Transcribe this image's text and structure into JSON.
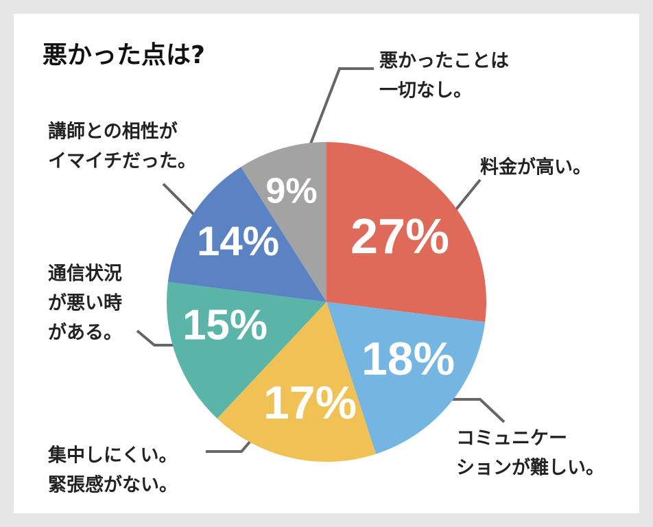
{
  "chart_data": {
    "type": "pie",
    "title": "悪かった点は?",
    "categories": [
      [
        "料金が高い。"
      ],
      [
        "コミュニケー",
        "ションが難しい。"
      ],
      [
        "集中しにくい。",
        "緊張感がない。"
      ],
      [
        "通信状況",
        "が悪い時",
        "がある。"
      ],
      [
        "講師との相性が",
        "イマイチだった。"
      ],
      [
        "悪かったことは",
        "一切なし。"
      ]
    ],
    "values": [
      27,
      18,
      17,
      15,
      14,
      9
    ],
    "value_labels": [
      "27%",
      "18%",
      "17%",
      "15%",
      "14%",
      "9%"
    ],
    "colors": [
      "#e06a5a",
      "#74b5e2",
      "#f0c155",
      "#5ab4a8",
      "#5b82c2",
      "#a3a3a3"
    ]
  }
}
